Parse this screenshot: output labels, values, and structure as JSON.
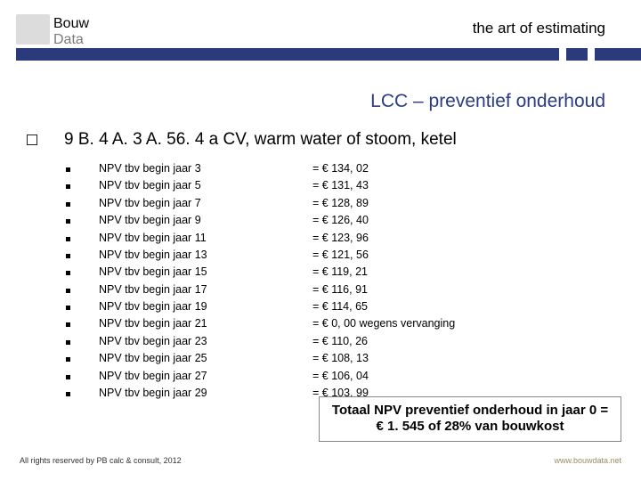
{
  "logo": {
    "line1": "Bouw",
    "line2": "Data"
  },
  "tagline": "the art of estimating",
  "slide_title": "LCC – preventief onderhoud",
  "section_heading": "9 B. 4 A. 3 A. 56. 4 a CV, warm water of stoom, ketel",
  "rows": [
    {
      "label": "NPV tbv begin jaar 3",
      "value": "= € 134, 02"
    },
    {
      "label": "NPV tbv begin jaar 5",
      "value": "= € 131, 43"
    },
    {
      "label": "NPV tbv begin jaar 7",
      "value": "= € 128, 89"
    },
    {
      "label": "NPV tbv begin jaar 9",
      "value": "= € 126, 40"
    },
    {
      "label": "NPV tbv begin jaar 11",
      "value": "= € 123, 96"
    },
    {
      "label": "NPV tbv begin jaar 13",
      "value": "= € 121, 56"
    },
    {
      "label": "NPV tbv begin jaar 15",
      "value": "= € 119, 21"
    },
    {
      "label": "NPV tbv begin jaar 17",
      "value": "= € 116, 91"
    },
    {
      "label": "NPV tbv begin jaar 19",
      "value": "= € 114, 65"
    },
    {
      "label": "NPV tbv begin jaar 21",
      "value": "= € 0, 00 wegens vervanging"
    },
    {
      "label": "NPV tbv begin jaar 23",
      "value": "= € 110, 26"
    },
    {
      "label": "NPV tbv begin jaar 25",
      "value": "= € 108, 13"
    },
    {
      "label": "NPV tbv begin jaar 27",
      "value": "= € 106, 04"
    },
    {
      "label": "NPV tbv begin jaar 29",
      "value": "= € 103, 99"
    }
  ],
  "total_box": "Totaal NPV preventief onderhoud in jaar 0 = € 1. 545 of 28% van bouwkost",
  "footer_left": "All rights reserved by PB calc & consult, 2012",
  "footer_right": "www.bouwdata.net",
  "colors": {
    "accent_blue": "#2b3a7a",
    "title_blue": "#2a3c82",
    "logo_gray": "#dcdcdc",
    "text": "#000000",
    "footer_right": "#9a8b6a"
  }
}
